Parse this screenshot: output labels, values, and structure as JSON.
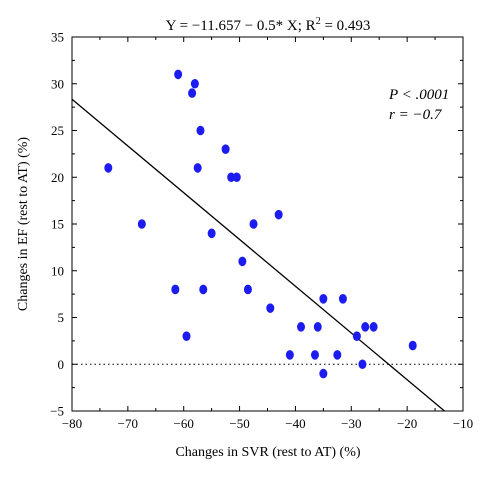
{
  "chart_data": {
    "type": "scatter",
    "title": "",
    "equation": {
      "left": "Y = −11.657 − 0.5* X; R",
      "sup": "2",
      "right": " = 0.493"
    },
    "annotations": [
      {
        "id": "p",
        "text": "P < .0001"
      },
      {
        "id": "r",
        "text": "r = −0.7"
      }
    ],
    "xlabel": "Changes in SVR (rest to AT) (%)",
    "ylabel": "Changes in EF (rest to AT) (%)",
    "xlim": [
      -80,
      -10
    ],
    "ylim": [
      -5,
      35
    ],
    "xticks": [
      -80,
      -70,
      -60,
      -50,
      -40,
      -30,
      -20,
      -10
    ],
    "yticks": [
      -5,
      0,
      5,
      10,
      15,
      20,
      25,
      30,
      35
    ],
    "grid": false,
    "point_color": "#1c1cf0",
    "line_color": "#000000",
    "regression": {
      "intercept": -11.657,
      "slope": -0.5
    },
    "reference_line": {
      "y": 0,
      "style": "dotted"
    },
    "points": [
      {
        "x": -73.5,
        "y": 21
      },
      {
        "x": -67.5,
        "y": 15
      },
      {
        "x": -61,
        "y": 31
      },
      {
        "x": -61.5,
        "y": 8
      },
      {
        "x": -59.5,
        "y": 3
      },
      {
        "x": -58.5,
        "y": 29
      },
      {
        "x": -58,
        "y": 30
      },
      {
        "x": -57.5,
        "y": 21
      },
      {
        "x": -57,
        "y": 25
      },
      {
        "x": -56.5,
        "y": 8
      },
      {
        "x": -55,
        "y": 14
      },
      {
        "x": -52.5,
        "y": 23
      },
      {
        "x": -51.5,
        "y": 20
      },
      {
        "x": -50.5,
        "y": 20
      },
      {
        "x": -49.5,
        "y": 11
      },
      {
        "x": -48.5,
        "y": 8
      },
      {
        "x": -47.5,
        "y": 15
      },
      {
        "x": -44.5,
        "y": 6
      },
      {
        "x": -43,
        "y": 16
      },
      {
        "x": -41,
        "y": 1
      },
      {
        "x": -39,
        "y": 4
      },
      {
        "x": -36.5,
        "y": 1
      },
      {
        "x": -36,
        "y": 4
      },
      {
        "x": -35,
        "y": 7
      },
      {
        "x": -35,
        "y": -1
      },
      {
        "x": -32.5,
        "y": 1
      },
      {
        "x": -31.5,
        "y": 7
      },
      {
        "x": -29,
        "y": 3
      },
      {
        "x": -28,
        "y": 0
      },
      {
        "x": -27.5,
        "y": 4
      },
      {
        "x": -26,
        "y": 4
      },
      {
        "x": -19,
        "y": 2
      }
    ]
  }
}
